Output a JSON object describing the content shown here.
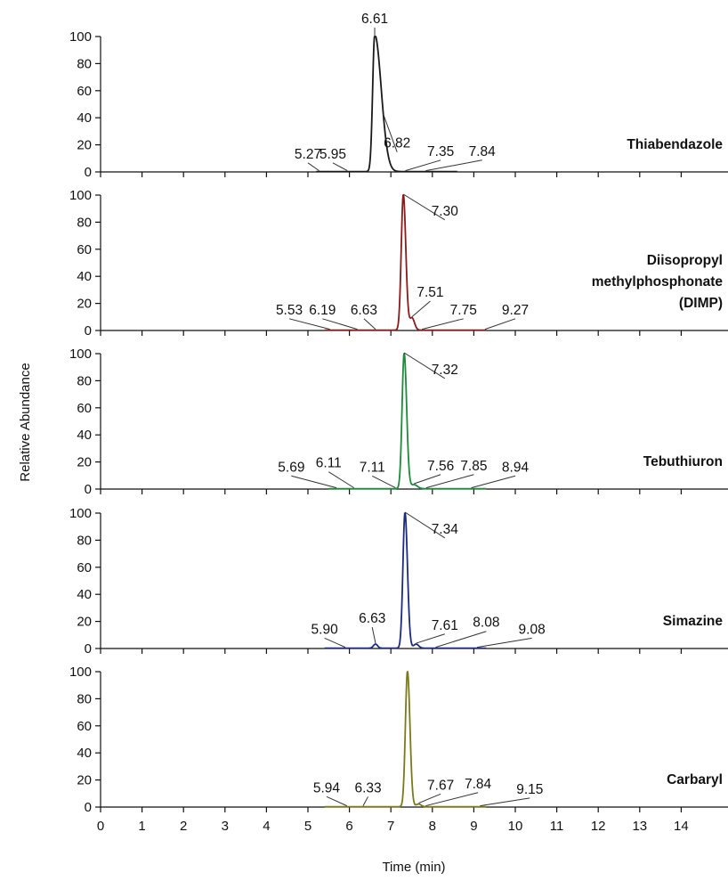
{
  "chart_data": {
    "type": "line",
    "xlabel": "Time (min)",
    "ylabel": "Relative Abundance",
    "xlim": [
      0,
      14.8
    ],
    "ylim": [
      0,
      100
    ],
    "x_ticks": [
      "0",
      "1",
      "2",
      "3",
      "4",
      "5",
      "6",
      "7",
      "8",
      "9",
      "10",
      "11",
      "12",
      "13",
      "14"
    ],
    "y_ticks": [
      "0",
      "20",
      "40",
      "60",
      "80",
      "100"
    ],
    "grid": false,
    "series": [
      {
        "name": "Thiabendazole",
        "name_lines": [
          "Thiabendazole"
        ],
        "color": "#1a1a1a",
        "baseline_start": 5.2,
        "baseline_end": 8.6,
        "peaks": [
          {
            "x": 6.61,
            "y": 100,
            "width": 0.05,
            "tail": 3.0
          },
          {
            "x": 6.82,
            "y": 4,
            "width": 0.12,
            "tail": 1.0
          }
        ],
        "annotations": [
          {
            "label": "6.61",
            "x": 6.61,
            "lx": 6.61,
            "ly": 108
          },
          {
            "label": "5.27",
            "x": 5.27,
            "lx": 5.0,
            "ly": 8
          },
          {
            "label": "5.95",
            "x": 5.95,
            "lx": 5.6,
            "ly": 8
          },
          {
            "label": "6.82",
            "x": 6.82,
            "lx": 7.15,
            "ly": 16
          },
          {
            "label": "7.35",
            "x": 7.35,
            "lx": 8.2,
            "ly": 10
          },
          {
            "label": "7.84",
            "x": 7.84,
            "lx": 9.2,
            "ly": 10
          }
        ]
      },
      {
        "name": "Diisopropyl methylphosphonate (DIMP)",
        "name_lines": [
          "Diisopropyl",
          "methylphosphonate",
          "(DIMP)"
        ],
        "color": "#8b1a1a",
        "baseline_start": 5.4,
        "baseline_end": 9.3,
        "peaks": [
          {
            "x": 7.3,
            "y": 100,
            "width": 0.05,
            "tail": 1.2
          },
          {
            "x": 7.51,
            "y": 9,
            "width": 0.06,
            "tail": 1.0
          }
        ],
        "annotations": [
          {
            "label": "7.30",
            "x": 7.3,
            "lx": 8.3,
            "ly": 83
          },
          {
            "label": "5.53",
            "x": 5.53,
            "lx": 4.55,
            "ly": 10
          },
          {
            "label": "6.19",
            "x": 6.19,
            "lx": 5.35,
            "ly": 10
          },
          {
            "label": "6.63",
            "x": 6.63,
            "lx": 6.35,
            "ly": 10
          },
          {
            "label": "7.51",
            "x": 7.51,
            "lx": 7.95,
            "ly": 23
          },
          {
            "label": "7.75",
            "x": 7.75,
            "lx": 8.75,
            "ly": 10
          },
          {
            "label": "9.27",
            "x": 9.27,
            "lx": 10.0,
            "ly": 10
          }
        ]
      },
      {
        "name": "Tebuthiuron",
        "name_lines": [
          "Tebuthiuron"
        ],
        "color": "#1e8a3c",
        "baseline_start": 5.5,
        "baseline_end": 9.3,
        "peaks": [
          {
            "x": 7.32,
            "y": 100,
            "width": 0.05,
            "tail": 1.2
          },
          {
            "x": 7.56,
            "y": 3,
            "width": 0.08,
            "tail": 1.0
          }
        ],
        "annotations": [
          {
            "label": "7.32",
            "x": 7.32,
            "lx": 8.3,
            "ly": 83
          },
          {
            "label": "5.69",
            "x": 5.69,
            "lx": 4.6,
            "ly": 11
          },
          {
            "label": "6.11",
            "x": 6.11,
            "lx": 5.5,
            "ly": 14
          },
          {
            "label": "7.11",
            "x": 7.11,
            "lx": 6.55,
            "ly": 11
          },
          {
            "label": "7.56",
            "x": 7.56,
            "lx": 8.2,
            "ly": 12
          },
          {
            "label": "7.85",
            "x": 7.85,
            "lx": 9.0,
            "ly": 12
          },
          {
            "label": "8.94",
            "x": 8.94,
            "lx": 10.0,
            "ly": 11
          }
        ]
      },
      {
        "name": "Simazine",
        "name_lines": [
          "Simazine"
        ],
        "color": "#1c2a80",
        "baseline_start": 5.4,
        "baseline_end": 9.3,
        "peaks": [
          {
            "x": 7.34,
            "y": 100,
            "width": 0.05,
            "tail": 1.2
          },
          {
            "x": 6.63,
            "y": 3,
            "width": 0.05,
            "tail": 1.0
          },
          {
            "x": 7.61,
            "y": 3,
            "width": 0.06,
            "tail": 1.0
          }
        ],
        "annotations": [
          {
            "label": "7.34",
            "x": 7.34,
            "lx": 8.3,
            "ly": 83
          },
          {
            "label": "5.90",
            "x": 5.9,
            "lx": 5.4,
            "ly": 9
          },
          {
            "label": "6.63",
            "x": 6.63,
            "lx": 6.55,
            "ly": 17
          },
          {
            "label": "7.61",
            "x": 7.61,
            "lx": 8.3,
            "ly": 12
          },
          {
            "label": "8.08",
            "x": 8.08,
            "lx": 9.3,
            "ly": 14
          },
          {
            "label": "9.08",
            "x": 9.08,
            "lx": 10.4,
            "ly": 9
          }
        ]
      },
      {
        "name": "Carbaryl",
        "name_lines": [
          "Carbaryl"
        ],
        "color": "#7a7a1a",
        "baseline_start": 5.4,
        "baseline_end": 9.3,
        "peaks": [
          {
            "x": 7.4,
            "y": 100,
            "width": 0.05,
            "tail": 1.2
          },
          {
            "x": 7.67,
            "y": 2,
            "width": 0.06,
            "tail": 1.0
          }
        ],
        "annotations": [
          {
            "label": "5.94",
            "x": 5.94,
            "lx": 5.45,
            "ly": 9
          },
          {
            "label": "6.33",
            "x": 6.33,
            "lx": 6.45,
            "ly": 9
          },
          {
            "label": "7.67",
            "x": 7.67,
            "lx": 8.2,
            "ly": 11
          },
          {
            "label": "7.84",
            "x": 7.84,
            "lx": 9.1,
            "ly": 12
          },
          {
            "label": "9.15",
            "x": 9.15,
            "lx": 10.35,
            "ly": 8
          }
        ]
      }
    ]
  }
}
